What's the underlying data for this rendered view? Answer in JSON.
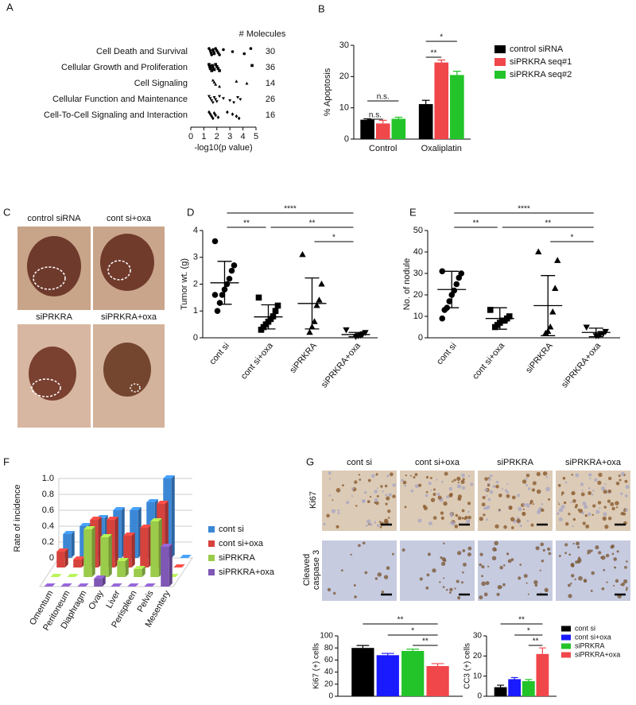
{
  "chart_data": [
    {
      "type": "dot",
      "panel": "A",
      "categories": [
        "Cell Death and Survival",
        "Cellular Growth and Proliferation",
        "Cell Signaling",
        "Cellular Function and Maintenance",
        "Cell-To-Cell Signaling and Interaction"
      ],
      "values": [
        [
          1.4,
          1.5,
          1.55,
          1.6,
          1.7,
          1.75,
          1.8,
          1.9,
          2.0,
          2.1,
          2.2,
          2.5,
          3.2,
          4.1,
          4.6
        ],
        [
          1.4,
          1.45,
          1.5,
          1.6,
          1.65,
          1.7,
          1.8,
          1.9,
          2.0,
          2.1,
          2.2,
          4.7
        ],
        [
          1.7,
          1.8,
          1.9,
          2.2,
          3.5,
          4.3
        ],
        [
          1.4,
          1.5,
          1.6,
          1.7,
          1.8,
          1.9,
          2.0,
          2.2,
          2.5,
          3.0,
          3.3,
          3.6,
          3.8
        ],
        [
          1.4,
          1.5,
          1.6,
          1.7,
          1.8,
          1.9,
          2.1,
          2.8,
          3.2,
          3.5,
          3.7
        ]
      ],
      "markers": [
        "circle",
        "square",
        "triangle",
        "triangle-down",
        "diamond"
      ],
      "color": "#000000",
      "count_header": "# Molecules",
      "counts": [
        30,
        36,
        14,
        26,
        16
      ],
      "xlabel": "-log10(p value)",
      "xlim": [
        0,
        5
      ],
      "xticks": [
        0,
        1,
        2,
        3,
        4,
        5
      ]
    },
    {
      "type": "bar",
      "panel": "B",
      "ylabel": "% Apoptosis",
      "categories": [
        "Control",
        "Oxaliplatin"
      ],
      "series": [
        {
          "name": "control siRNA",
          "color": "#000000",
          "values": [
            6.2,
            11.2
          ],
          "errors": [
            0.3,
            1.2
          ]
        },
        {
          "name": "siPRKRA seq#1",
          "color": "#f0474b",
          "values": [
            5,
            24.5
          ],
          "errors": [
            1,
            0.8
          ]
        },
        {
          "name": "siPRKRA seq#2",
          "color": "#22c42a",
          "values": [
            6.5,
            20.5
          ],
          "errors": [
            0.5,
            1.2
          ]
        }
      ],
      "ylim": [
        0,
        30
      ],
      "yticks": [
        0,
        10,
        20,
        30
      ],
      "brackets": [
        {
          "from": [
            0,
            0
          ],
          "to": [
            0,
            1
          ],
          "label": "n.s."
        },
        {
          "from": [
            0,
            0
          ],
          "to": [
            0,
            2
          ],
          "label": "n.s."
        },
        {
          "from": [
            1,
            0
          ],
          "to": [
            1,
            1
          ],
          "label": "**"
        },
        {
          "from": [
            1,
            0
          ],
          "to": [
            1,
            2
          ],
          "label": "*"
        }
      ]
    },
    {
      "type": "scatter-mean",
      "panel": "D",
      "ylabel": "Tumor wt. (g)",
      "categories": [
        "cont si",
        "cont si+oxa",
        "siPRKRA",
        "siPRKRA+oxa"
      ],
      "points": [
        [
          3.6,
          2.7,
          2.5,
          2.2,
          2.0,
          1.8,
          1.6,
          1.3,
          1.0,
          1.6
        ],
        [
          1.5,
          1.2,
          1.0,
          0.8,
          0.7,
          0.6,
          0.5,
          0.4,
          0.3
        ],
        [
          3.1,
          2.0,
          1.4,
          1.2,
          0.6,
          0.4,
          0.2
        ],
        [
          0.3,
          0.2,
          0.15,
          0.1,
          0.08,
          0.05
        ]
      ],
      "means": [
        2.05,
        0.78,
        1.28,
        0.12
      ],
      "sds": [
        0.8,
        0.45,
        0.95,
        0.08
      ],
      "markers": [
        "circle",
        "square",
        "triangle",
        "triangle-down"
      ],
      "color": "#000000",
      "ylim": [
        0,
        4
      ],
      "yticks": [
        0,
        1,
        2,
        3,
        4
      ],
      "brackets": [
        {
          "from": 0,
          "to": 1,
          "label": "**"
        },
        {
          "from": 0,
          "to": 3,
          "label": "****"
        },
        {
          "from": 1,
          "to": 3,
          "label": "**"
        },
        {
          "from": 2,
          "to": 3,
          "label": "*"
        }
      ]
    },
    {
      "type": "scatter-mean",
      "panel": "E",
      "ylabel": "No. of nodule",
      "categories": [
        "cont si",
        "cont si+oxa",
        "siPRKRA",
        "siPRKRA+oxa"
      ],
      "points": [
        [
          31,
          30,
          28,
          25,
          22,
          20,
          17,
          14,
          13,
          9
        ],
        [
          13,
          10,
          9,
          8,
          8,
          7,
          6,
          5
        ],
        [
          40,
          36,
          23,
          12,
          5,
          3,
          2
        ],
        [
          5,
          3,
          2,
          2,
          1,
          1
        ]
      ],
      "means": [
        22.5,
        9,
        15,
        2.5
      ],
      "sds": [
        8.5,
        5,
        14,
        2
      ],
      "markers": [
        "circle",
        "square",
        "triangle",
        "triangle-down"
      ],
      "color": "#000000",
      "ylim": [
        0,
        50
      ],
      "yticks": [
        0,
        10,
        20,
        30,
        40,
        50
      ],
      "brackets": [
        {
          "from": 0,
          "to": 1,
          "label": "**"
        },
        {
          "from": 0,
          "to": 3,
          "label": "****"
        },
        {
          "from": 1,
          "to": 3,
          "label": "**"
        },
        {
          "from": 2,
          "to": 3,
          "label": "*"
        }
      ]
    },
    {
      "type": "bar3d",
      "panel": "F",
      "ylabel": "Rate of incidence",
      "categories": [
        "Omentum",
        "Peritoneum",
        "Diaphragm",
        "Ovay",
        "Liver",
        "Perispleen",
        "Pelvis",
        "Mesentery"
      ],
      "series": [
        {
          "name": "cont si",
          "color": "#3b87d6",
          "values": [
            0.3,
            0.4,
            0.5,
            0.6,
            0.6,
            0.7,
            1.0,
            0
          ]
        },
        {
          "name": "cont si+oxa",
          "color": "#d6423c",
          "values": [
            0.2,
            0.1,
            0.6,
            0.6,
            0.4,
            0.5,
            0.8,
            0
          ]
        },
        {
          "name": "siPRKRA",
          "color": "#9acb4a",
          "values": [
            0,
            0,
            0.6,
            0.5,
            0.2,
            0.1,
            0.7,
            0
          ]
        },
        {
          "name": "siPRKRA+oxa",
          "color": "#7f57b5",
          "values": [
            0,
            0,
            0,
            0.1,
            0,
            0,
            0,
            0.5
          ]
        }
      ],
      "ylim": [
        0,
        1
      ],
      "yticks": [
        0,
        0.2,
        0.4,
        0.6,
        0.8,
        {
          "value": 1,
          "label": "1.0"
        }
      ]
    },
    {
      "type": "bar",
      "ylabel": "Ki67 (+) cells",
      "categories": [
        null
      ],
      "series": [
        {
          "color": "#000000",
          "values": [
            80
          ],
          "errors": [
            4
          ]
        },
        {
          "color": "#1a1aff",
          "values": [
            68
          ],
          "errors": [
            3
          ]
        },
        {
          "color": "#22c42a",
          "values": [
            75
          ],
          "errors": [
            3
          ]
        },
        {
          "color": "#f0474b",
          "values": [
            50
          ],
          "errors": [
            4
          ]
        }
      ],
      "ylim": [
        0,
        100
      ],
      "yticks": [
        0,
        20,
        40,
        60,
        80,
        100
      ],
      "brackets": [
        {
          "from": [
            0,
            0
          ],
          "to": [
            0,
            3
          ],
          "label": "**"
        },
        {
          "from": [
            0,
            1
          ],
          "to": [
            0,
            3
          ],
          "label": "*"
        },
        {
          "from": [
            0,
            2
          ],
          "to": [
            0,
            3
          ],
          "label": "**"
        }
      ]
    },
    {
      "type": "bar",
      "ylabel": "CC3 (+) cells",
      "categories": [
        null
      ],
      "series": [
        {
          "name": "cont si",
          "color": "#000000",
          "values": [
            4.5
          ],
          "errors": [
            1
          ]
        },
        {
          "name": "cont si+oxa",
          "color": "#1a1aff",
          "values": [
            8.5
          ],
          "errors": [
            0.8
          ]
        },
        {
          "name": "siPRKRA",
          "color": "#22c42a",
          "values": [
            7.5
          ],
          "errors": [
            0.8
          ]
        },
        {
          "name": "siPRKRA+oxa",
          "color": "#f0474b",
          "values": [
            21
          ],
          "errors": [
            3
          ]
        }
      ],
      "ylim": [
        0,
        30
      ],
      "yticks": [
        0,
        10,
        20,
        30
      ],
      "brackets": [
        {
          "from": [
            0,
            0
          ],
          "to": [
            0,
            3
          ],
          "label": "**"
        },
        {
          "from": [
            0,
            1
          ],
          "to": [
            0,
            3
          ],
          "label": "*"
        },
        {
          "from": [
            0,
            2
          ],
          "to": [
            0,
            3
          ],
          "label": "**"
        }
      ]
    }
  ],
  "panel_c": {
    "panel": "C",
    "labels": [
      "control siRNA",
      "cont si+oxa",
      "siPRKRA",
      "siPRKRA+oxa"
    ]
  },
  "panel_g": {
    "panel": "G",
    "columns": [
      "cont si",
      "cont si+oxa",
      "siPRKRA",
      "siPRKRA+oxa"
    ],
    "rows": [
      [
        "Ki67"
      ],
      [
        "Cleaved",
        "caspase 3"
      ]
    ]
  }
}
